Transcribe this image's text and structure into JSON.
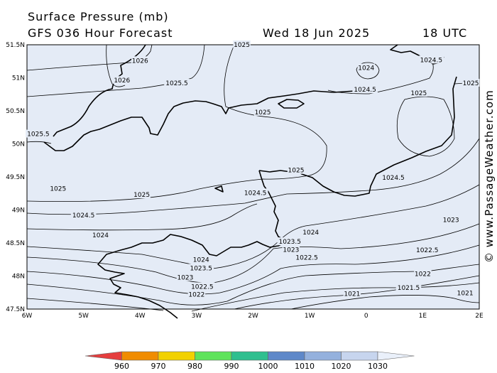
{
  "header": {
    "title": "Surface Pressure (mb)",
    "subtitle": "GFS 036 Hour Forecast",
    "date": "Wed 18 Jun 2025",
    "time": "18 UTC"
  },
  "credit": "© www.PassageWeather.com",
  "map": {
    "background": "#e4ebf6",
    "lat_labels": [
      "51.5N",
      "51N",
      "50.5N",
      "50N",
      "49.5N",
      "49N",
      "48.5N",
      "48N",
      "47.5N"
    ],
    "lon_labels": [
      "6W",
      "5W",
      "4W",
      "3W",
      "2W",
      "1W",
      "0",
      "1E",
      "2E"
    ]
  },
  "isobar_labels": [
    {
      "text": "1025",
      "lon": -2.2,
      "lat": 51.5
    },
    {
      "text": "1026",
      "lon": -4.0,
      "lat": 51.26
    },
    {
      "text": "1026",
      "lon": -4.32,
      "lat": 50.96
    },
    {
      "text": "1025.5",
      "lon": -3.35,
      "lat": 50.92
    },
    {
      "text": "1025",
      "lon": -1.83,
      "lat": 50.48
    },
    {
      "text": "1025.5",
      "lon": -5.8,
      "lat": 50.15
    },
    {
      "text": "1024",
      "lon": 0.0,
      "lat": 51.15
    },
    {
      "text": "1024.5",
      "lon": 1.15,
      "lat": 51.27
    },
    {
      "text": "1024.5",
      "lon": -0.02,
      "lat": 50.82
    },
    {
      "text": "1025",
      "lon": 0.93,
      "lat": 50.77
    },
    {
      "text": "1025",
      "lon": 1.85,
      "lat": 50.92
    },
    {
      "text": "1025",
      "lon": -1.24,
      "lat": 49.6
    },
    {
      "text": "1024.5",
      "lon": 0.48,
      "lat": 49.49
    },
    {
      "text": "1025",
      "lon": -5.45,
      "lat": 49.32
    },
    {
      "text": "1025",
      "lon": -3.97,
      "lat": 49.23
    },
    {
      "text": "1024.5",
      "lon": -1.96,
      "lat": 49.26
    },
    {
      "text": "1024.5",
      "lon": -5.0,
      "lat": 48.92
    },
    {
      "text": "1023",
      "lon": 1.5,
      "lat": 48.85
    },
    {
      "text": "1024",
      "lon": -4.7,
      "lat": 48.62
    },
    {
      "text": "1024",
      "lon": -0.98,
      "lat": 48.66
    },
    {
      "text": "1023.5",
      "lon": -1.35,
      "lat": 48.52
    },
    {
      "text": "1023",
      "lon": -1.33,
      "lat": 48.4
    },
    {
      "text": "1022.5",
      "lon": 1.08,
      "lat": 48.39
    },
    {
      "text": "1022.5",
      "lon": -1.05,
      "lat": 48.28
    },
    {
      "text": "1024",
      "lon": -2.92,
      "lat": 48.25
    },
    {
      "text": "1023.5",
      "lon": -2.92,
      "lat": 48.12
    },
    {
      "text": "1023",
      "lon": -3.2,
      "lat": 47.98
    },
    {
      "text": "1022",
      "lon": 1.0,
      "lat": 48.03
    },
    {
      "text": "1022.5",
      "lon": -2.9,
      "lat": 47.84
    },
    {
      "text": "1021.5",
      "lon": 0.75,
      "lat": 47.82
    },
    {
      "text": "1022",
      "lon": -3.0,
      "lat": 47.72
    },
    {
      "text": "1021",
      "lon": -0.25,
      "lat": 47.73
    },
    {
      "text": "1021",
      "lon": 1.75,
      "lat": 47.74
    }
  ],
  "colorbar": {
    "colors": [
      "#e53e3e",
      "#f08c00",
      "#f2d100",
      "#5fe35b",
      "#2fbf8f",
      "#5e88c9",
      "#94b1dd",
      "#c7d5ee",
      "#eaf0fa"
    ],
    "labels": [
      "960",
      "970",
      "980",
      "990",
      "1000",
      "1010",
      "1020",
      "1030"
    ]
  }
}
